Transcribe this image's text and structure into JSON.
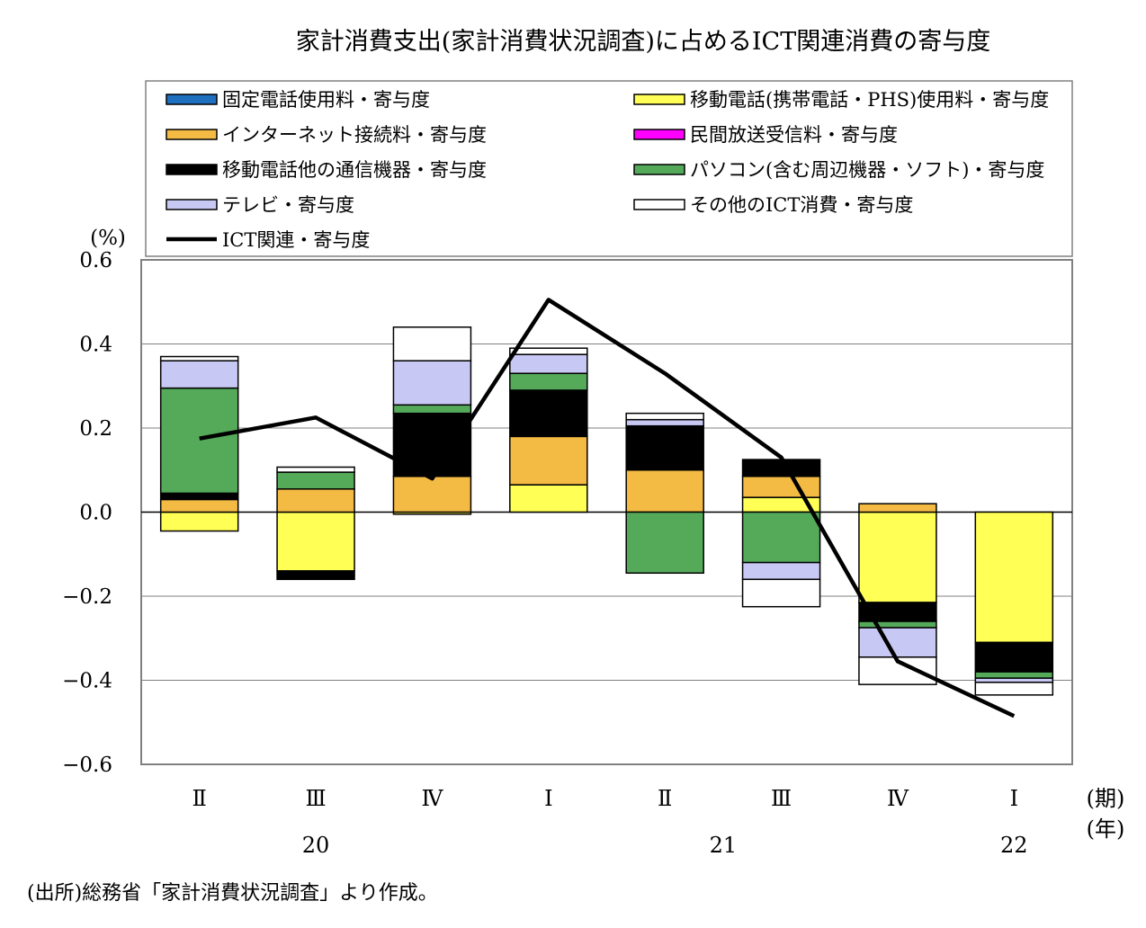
{
  "chart_data": {
    "type": "bar",
    "title": "家計消費支出(家計消費状況調査)に占めるICT関連消費の寄与度",
    "ylabel": "(%)",
    "ylim": [
      -0.6,
      0.6
    ],
    "yticks": [
      "0.6",
      "0.4",
      "0.2",
      "0.0",
      "−0.2",
      "−0.4",
      "−0.6"
    ],
    "ytick_values": [
      0.6,
      0.4,
      0.2,
      0.0,
      -0.2,
      -0.4,
      -0.6
    ],
    "categories": [
      "Ⅱ",
      "Ⅲ",
      "Ⅳ",
      "Ⅰ",
      "Ⅱ",
      "Ⅲ",
      "Ⅳ",
      "Ⅰ"
    ],
    "x_unit_period": "(期)",
    "x_unit_year": "(年)",
    "years": [
      {
        "label": "20",
        "center_index": 1
      },
      {
        "label": "21",
        "center_index": 4.5
      },
      {
        "label": "22",
        "center_index": 7
      }
    ],
    "grid": true,
    "legend_position": "top",
    "series": [
      {
        "name": "固定電話使用料・寄与度",
        "color": "#1f6fbf",
        "values": [
          0,
          0,
          0,
          0,
          0,
          0,
          0,
          0
        ]
      },
      {
        "name": "移動電話(携帯電話・PHS)使用料・寄与度",
        "color": "#ffff55",
        "values": [
          -0.045,
          -0.14,
          -0.005,
          0.065,
          0.0,
          0.035,
          -0.215,
          -0.31
        ]
      },
      {
        "name": "インターネット接続料・寄与度",
        "color": "#f4bb44",
        "values": [
          0.03,
          0.055,
          0.085,
          0.115,
          0.1,
          0.05,
          0.02,
          0.0
        ]
      },
      {
        "name": "民間放送受信料・寄与度",
        "color": "#ff00ff",
        "values": [
          0,
          0,
          0,
          0,
          0,
          0,
          0,
          0
        ]
      },
      {
        "name": "移動電話他の通信機器・寄与度",
        "color": "#000000",
        "values": [
          0.015,
          -0.02,
          0.15,
          0.11,
          0.105,
          0.04,
          -0.045,
          -0.07
        ]
      },
      {
        "name": "パソコン(含む周辺機器・ソフト)・寄与度",
        "color": "#55aa5a",
        "values": [
          0.25,
          0.04,
          0.02,
          0.04,
          -0.145,
          -0.12,
          -0.015,
          -0.015
        ]
      },
      {
        "name": "テレビ・寄与度",
        "color": "#c8c8f4",
        "values": [
          0.065,
          0.0,
          0.105,
          0.045,
          0.015,
          -0.04,
          -0.07,
          -0.01
        ]
      },
      {
        "name": "その他のICT消費・寄与度",
        "color": "#ffffff",
        "values": [
          0.01,
          0.012,
          0.08,
          0.015,
          0.015,
          -0.065,
          -0.065,
          -0.03
        ]
      }
    ],
    "line_series": {
      "name": "ICT関連・寄与度",
      "color": "#000000",
      "values": [
        0.175,
        0.225,
        0.08,
        0.505,
        0.33,
        0.13,
        -0.355,
        -0.485
      ]
    }
  },
  "source": "(出所)総務省「家計消費状況調査」より作成。"
}
